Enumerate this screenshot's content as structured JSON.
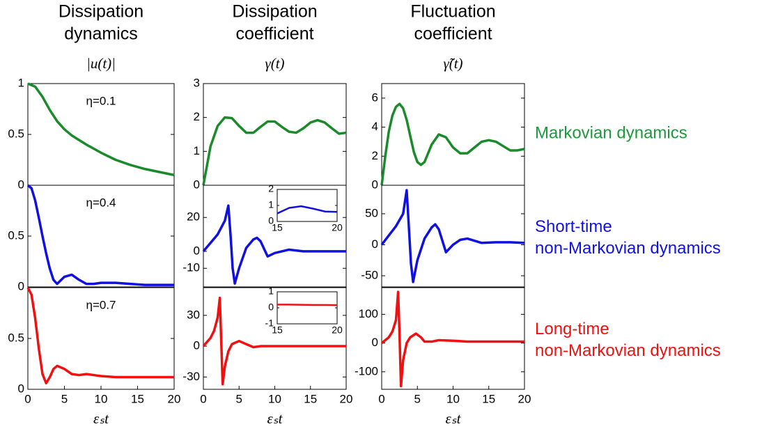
{
  "columns": [
    {
      "title": [
        "Dissipation",
        "dynamics"
      ],
      "ylabel": "|u(t)|"
    },
    {
      "title": [
        "Dissipation",
        "coefficient"
      ],
      "ylabel": "γ(t)"
    },
    {
      "title": [
        "Fluctuation",
        "coefficient"
      ],
      "ylabel": "γ̃(t)"
    }
  ],
  "row_labels": [
    {
      "lines": [
        "Markovian dynamics"
      ],
      "color": "#1a9a3a"
    },
    {
      "lines": [
        "Short-time",
        "non-Markovian dynamics"
      ],
      "color": "#1010e8"
    },
    {
      "lines": [
        "Long-time",
        "non-Markovian dynamics"
      ],
      "color": "#f01010"
    }
  ],
  "chart_data": [
    {
      "type": "line",
      "annotation": "η=0.1",
      "color": "#1a8a2a",
      "xlim": [
        0,
        20
      ],
      "ylim": [
        0,
        1
      ],
      "yticks": [
        0,
        0.5,
        1
      ],
      "x": [
        0,
        1,
        2,
        3,
        4,
        5,
        6,
        8,
        10,
        12,
        14,
        16,
        18,
        20
      ],
      "values": [
        1,
        0.97,
        0.87,
        0.74,
        0.63,
        0.55,
        0.49,
        0.4,
        0.32,
        0.25,
        0.2,
        0.16,
        0.13,
        0.1
      ]
    },
    {
      "type": "line",
      "color": "#1a8a2a",
      "xlim": [
        0,
        20
      ],
      "ylim": [
        0,
        3
      ],
      "yticks": [
        0,
        1,
        2,
        3
      ],
      "x": [
        0,
        1,
        2,
        3,
        4,
        5,
        6,
        7,
        8,
        9,
        10,
        11,
        12,
        13,
        14,
        15,
        16,
        17,
        18,
        19,
        20
      ],
      "values": [
        0,
        1.15,
        1.75,
        2,
        1.98,
        1.75,
        1.55,
        1.55,
        1.72,
        1.88,
        1.88,
        1.72,
        1.58,
        1.55,
        1.68,
        1.85,
        1.92,
        1.85,
        1.68,
        1.52,
        1.55
      ]
    },
    {
      "type": "line",
      "color": "#1a8a2a",
      "xlim": [
        0,
        20
      ],
      "ylim": [
        0,
        7
      ],
      "yticks": [
        0,
        2,
        4,
        6
      ],
      "x": [
        0,
        0.5,
        1,
        1.5,
        2,
        2.5,
        3,
        3.5,
        4,
        4.5,
        5,
        5.5,
        6,
        7,
        8,
        9,
        10,
        11,
        12,
        13,
        14,
        15,
        16,
        17,
        18,
        19,
        20
      ],
      "values": [
        0,
        2,
        3.7,
        4.8,
        5.4,
        5.6,
        5.3,
        4.5,
        3.4,
        2.3,
        1.6,
        1.4,
        1.6,
        2.8,
        3.5,
        3.3,
        2.6,
        2.2,
        2.2,
        2.6,
        3,
        3.1,
        3,
        2.7,
        2.4,
        2.4,
        2.5
      ]
    },
    {
      "type": "line",
      "annotation": "η=0.4",
      "color": "#1010e0",
      "xlim": [
        0,
        20
      ],
      "ylim": [
        0,
        1
      ],
      "yticks": [
        0,
        0.5
      ],
      "x": [
        0,
        0.5,
        1,
        1.5,
        2,
        2.5,
        3,
        3.5,
        4,
        5,
        6,
        7,
        8,
        9,
        10,
        12,
        14,
        16,
        18,
        20
      ],
      "values": [
        1,
        0.97,
        0.85,
        0.68,
        0.5,
        0.33,
        0.18,
        0.07,
        0.03,
        0.1,
        0.12,
        0.07,
        0.03,
        0.03,
        0.04,
        0.04,
        0.03,
        0.02,
        0.02,
        0.02
      ]
    },
    {
      "type": "line",
      "color": "#1010e0",
      "xlim": [
        0,
        20
      ],
      "ylim": [
        -21,
        39
      ],
      "yticks": [
        -10,
        0,
        20
      ],
      "x": [
        0,
        1,
        2,
        3,
        3.5,
        3.8,
        4.1,
        4.4,
        5,
        6,
        7,
        7.5,
        8,
        9,
        10,
        12,
        14,
        16,
        18,
        20
      ],
      "values": [
        0,
        5,
        10,
        18,
        27,
        10,
        -10,
        -19,
        -10,
        2,
        7,
        8,
        6,
        -3,
        -1,
        1,
        0,
        0,
        0,
        0
      ],
      "inset": {
        "type": "line",
        "color": "#1010e0",
        "xlim": [
          15,
          20
        ],
        "ylim": [
          0,
          2
        ],
        "xticks": [
          15,
          20
        ],
        "yticks": [
          0,
          1,
          2
        ],
        "x": [
          15,
          16,
          17,
          18,
          19,
          20
        ],
        "values": [
          0.5,
          0.85,
          0.95,
          0.8,
          0.62,
          0.6
        ]
      }
    },
    {
      "type": "line",
      "color": "#1010e0",
      "xlim": [
        0,
        20
      ],
      "ylim": [
        -68,
        96
      ],
      "yticks": [
        -50,
        0,
        50
      ],
      "x": [
        0,
        1,
        2,
        3,
        3.5,
        3.8,
        4.1,
        4.4,
        5,
        6,
        7,
        7.5,
        8,
        9,
        10,
        11,
        12,
        14,
        16,
        18,
        20
      ],
      "values": [
        0,
        15,
        30,
        50,
        88,
        30,
        -30,
        -60,
        -25,
        10,
        28,
        33,
        25,
        -12,
        0,
        8,
        10,
        3,
        4,
        4,
        3
      ]
    },
    {
      "type": "line",
      "annotation": "η=0.7",
      "color": "#f01010",
      "xlim": [
        0,
        20
      ],
      "ylim": [
        0,
        1
      ],
      "yticks": [
        0,
        0.5
      ],
      "xticks": [
        0,
        5,
        10,
        15,
        20
      ],
      "xlabel": "εₛt",
      "x": [
        0,
        0.5,
        1,
        1.5,
        2,
        2.5,
        3,
        3.5,
        4,
        5,
        6,
        7,
        8,
        9,
        10,
        12,
        14,
        16,
        18,
        20
      ],
      "values": [
        1,
        0.93,
        0.7,
        0.4,
        0.15,
        0.06,
        0.12,
        0.2,
        0.23,
        0.2,
        0.15,
        0.14,
        0.15,
        0.14,
        0.13,
        0.12,
        0.12,
        0.12,
        0.12,
        0.12
      ]
    },
    {
      "type": "line",
      "color": "#f01010",
      "xlim": [
        0,
        20
      ],
      "ylim": [
        -42,
        57
      ],
      "yticks": [
        -30,
        0,
        30
      ],
      "xticks": [
        0,
        5,
        10,
        15,
        20
      ],
      "xlabel": "εₛt",
      "x": [
        0,
        1,
        1.5,
        2,
        2.3,
        2.5,
        2.7,
        3,
        3.5,
        4,
        5,
        6,
        7,
        8,
        10,
        12,
        15,
        20
      ],
      "values": [
        0,
        8,
        15,
        28,
        47,
        5,
        -37,
        -20,
        -5,
        2,
        5,
        2,
        -1,
        0,
        0,
        0,
        0,
        0
      ],
      "inset": {
        "type": "line",
        "color": "#f01010",
        "xlim": [
          15,
          20
        ],
        "ylim": [
          -1,
          1
        ],
        "xticks": [
          15,
          20
        ],
        "yticks": [
          -1,
          0,
          1
        ],
        "x": [
          15,
          16,
          17,
          18,
          19,
          20
        ],
        "values": [
          0.2,
          0.2,
          0.19,
          0.18,
          0.18,
          0.17
        ]
      }
    },
    {
      "type": "line",
      "color": "#f01010",
      "xlim": [
        0,
        20
      ],
      "ylim": [
        -161,
        193
      ],
      "yticks": [
        -100,
        0,
        100
      ],
      "xticks": [
        0,
        5,
        10,
        15,
        20
      ],
      "xlabel": "εₛt",
      "x": [
        0,
        1,
        1.5,
        2,
        2.3,
        2.5,
        2.7,
        3,
        3.5,
        4,
        4.8,
        5.5,
        6,
        7,
        8,
        10,
        12,
        15,
        20
      ],
      "values": [
        0,
        20,
        40,
        80,
        178,
        30,
        -150,
        -60,
        0,
        20,
        33,
        20,
        5,
        5,
        10,
        8,
        5,
        5,
        5
      ]
    }
  ]
}
